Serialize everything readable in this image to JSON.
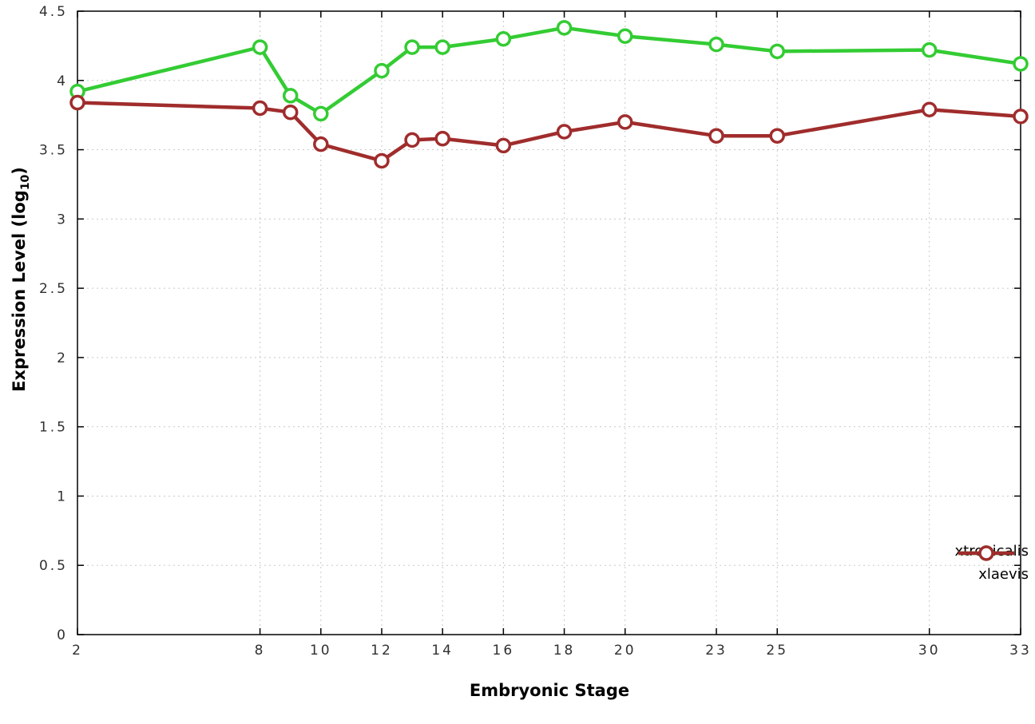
{
  "axes": {
    "ylabel_prefix": "Expression Level (log",
    "ylabel_sub": "10",
    "ylabel_suffix": ")",
    "xlabel": "Embryonic Stage"
  },
  "chart_data": {
    "type": "line",
    "title": "",
    "xlabel": "Embryonic Stage",
    "ylabel": "Expression Level (log10)",
    "xlim": [
      2,
      33
    ],
    "ylim": [
      0,
      4.5
    ],
    "xticks": [
      2,
      8,
      10,
      12,
      14,
      16,
      18,
      20,
      23,
      25,
      30,
      33
    ],
    "yticks": [
      0,
      0.5,
      1,
      1.5,
      2,
      2.5,
      3,
      3.5,
      4,
      4.5
    ],
    "grid": true,
    "legend_position": "bottom-right",
    "x": [
      2,
      8,
      9,
      10,
      12,
      13,
      14,
      16,
      18,
      20,
      23,
      25,
      30,
      33
    ],
    "series": [
      {
        "name": "xtropicalis",
        "color": "#33cc33",
        "values": [
          3.92,
          4.24,
          3.89,
          3.76,
          4.07,
          4.24,
          4.24,
          4.3,
          4.38,
          4.32,
          4.26,
          4.21,
          4.22,
          4.12
        ]
      },
      {
        "name": "xlaevis",
        "color": "#a02c2c",
        "values": [
          3.84,
          3.8,
          3.77,
          3.54,
          3.42,
          3.57,
          3.58,
          3.53,
          3.63,
          3.7,
          3.6,
          3.6,
          3.79,
          3.74
        ]
      }
    ]
  }
}
